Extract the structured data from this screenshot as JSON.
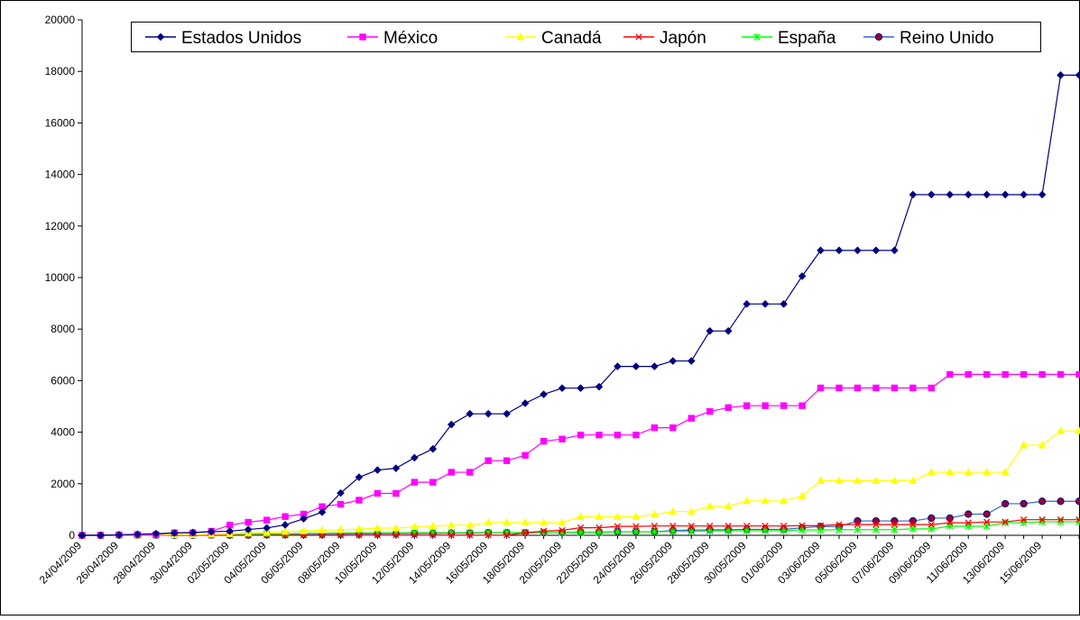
{
  "chart_data": {
    "type": "line",
    "title": "",
    "xlabel": "",
    "ylabel": "",
    "ylim": [
      0,
      20000
    ],
    "y_ticks": [
      "0",
      "2000",
      "4000",
      "6000",
      "8000",
      "10000",
      "12000",
      "14000",
      "16000",
      "18000",
      "20000"
    ],
    "grid": false,
    "legend_position": "top",
    "x": [
      "24/04/2009",
      "25/04/2009",
      "26/04/2009",
      "27/04/2009",
      "28/04/2009",
      "29/04/2009",
      "30/04/2009",
      "01/05/2009",
      "02/05/2009",
      "03/05/2009",
      "04/05/2009",
      "05/05/2009",
      "06/05/2009",
      "07/05/2009",
      "08/05/2009",
      "09/05/2009",
      "10/05/2009",
      "11/05/2009",
      "12/05/2009",
      "13/05/2009",
      "14/05/2009",
      "15/05/2009",
      "16/05/2009",
      "17/05/2009",
      "18/05/2009",
      "19/05/2009",
      "20/05/2009",
      "21/05/2009",
      "22/05/2009",
      "23/05/2009",
      "24/05/2009",
      "25/05/2009",
      "26/05/2009",
      "27/05/2009",
      "28/05/2009",
      "29/05/2009",
      "30/05/2009",
      "31/05/2009",
      "01/06/2009",
      "02/06/2009",
      "03/06/2009",
      "04/06/2009",
      "05/06/2009",
      "06/06/2009",
      "07/06/2009",
      "08/06/2009",
      "09/06/2009",
      "10/06/2009",
      "11/06/2009",
      "12/06/2009",
      "13/06/2009",
      "14/06/2009",
      "15/06/2009",
      "16/06/2009",
      "17/06/2009"
    ],
    "x_tick_labels": [
      "24/04/2009",
      "26/04/2009",
      "28/04/2009",
      "30/04/2009",
      "02/05/2009",
      "04/05/2009",
      "06/05/2009",
      "08/05/2009",
      "10/05/2009",
      "12/05/2009",
      "14/05/2009",
      "16/05/2009",
      "18/05/2009",
      "20/05/2009",
      "22/05/2009",
      "24/05/2009",
      "26/05/2009",
      "28/05/2009",
      "30/05/2009",
      "01/06/2009",
      "03/06/2009",
      "05/06/2009",
      "07/06/2009",
      "09/06/2009",
      "11/06/2009",
      "13/06/2009",
      "15/06/2009"
    ],
    "series": [
      {
        "name": "Estados Unidos",
        "color": "#000080",
        "marker": "diamond",
        "values": [
          0,
          0,
          20,
          40,
          64,
          91,
          109,
          141,
          160,
          226,
          286,
          403,
          642,
          896,
          1639,
          2254,
          2532,
          2600,
          3009,
          3352,
          4298,
          4714,
          4714,
          4714,
          5123,
          5469,
          5710,
          5710,
          5764,
          6552,
          6552,
          6552,
          6764,
          6764,
          7927,
          7927,
          8975,
          8975,
          8975,
          10053,
          11054,
          11054,
          11054,
          11054,
          11054,
          13217,
          13217,
          13217,
          13217,
          13217,
          13217,
          13217,
          13217,
          17855,
          17855
        ]
      },
      {
        "name": "México",
        "color": "#ff00ff",
        "marker": "square",
        "values": [
          0,
          0,
          18,
          26,
          26,
          97,
          97,
          156,
          397,
          506,
          590,
          727,
          822,
          1112,
          1204,
          1364,
          1626,
          1626,
          2059,
          2059,
          2446,
          2446,
          2895,
          2895,
          3103,
          3648,
          3734,
          3892,
          3892,
          3892,
          3892,
          4174,
          4174,
          4541,
          4806,
          4953,
          5029,
          5029,
          5029,
          5029,
          5717,
          5717,
          5717,
          5717,
          5717,
          5717,
          5717,
          6241,
          6241,
          6241,
          6241,
          6241,
          6241,
          6241,
          6241
        ]
      },
      {
        "name": "Canadá",
        "color": "#ffff00",
        "marker": "triangle",
        "values": [
          0,
          0,
          6,
          6,
          13,
          19,
          19,
          34,
          51,
          85,
          101,
          140,
          165,
          201,
          214,
          242,
          280,
          280,
          330,
          358,
          389,
          389,
          496,
          496,
          496,
          496,
          496,
          719,
          719,
          719,
          719,
          805,
          921,
          921,
          1118,
          1118,
          1336,
          1336,
          1336,
          1530,
          2115,
          2115,
          2115,
          2115,
          2115,
          2115,
          2446,
          2446,
          2446,
          2446,
          2446,
          3498,
          3498,
          4049,
          4049
        ]
      },
      {
        "name": "Japón",
        "color": "#ff0000",
        "marker": "x",
        "values": [
          0,
          0,
          0,
          0,
          0,
          0,
          0,
          0,
          0,
          0,
          0,
          0,
          0,
          0,
          0,
          4,
          4,
          4,
          4,
          4,
          7,
          7,
          7,
          7,
          96,
          163,
          193,
          294,
          294,
          345,
          345,
          360,
          360,
          360,
          360,
          360,
          360,
          360,
          360,
          376,
          376,
          416,
          416,
          416,
          416,
          416,
          416,
          485,
          485,
          518,
          518,
          605,
          605,
          605,
          605
        ]
      },
      {
        "name": "España",
        "color": "#00ff00",
        "marker": "star",
        "values": [
          0,
          0,
          2,
          2,
          10,
          13,
          13,
          13,
          40,
          40,
          54,
          57,
          73,
          81,
          88,
          93,
          95,
          98,
          100,
          103,
          103,
          103,
          107,
          107,
          107,
          107,
          107,
          113,
          113,
          133,
          133,
          133,
          151,
          151,
          171,
          171,
          182,
          182,
          182,
          205,
          205,
          218,
          218,
          218,
          218,
          250,
          250,
          350,
          350,
          350,
          488,
          488,
          522,
          522,
          522
        ]
      },
      {
        "name": "Reino Unido",
        "color": "#3366cc",
        "marker": "circle",
        "values": [
          0,
          0,
          0,
          0,
          5,
          5,
          5,
          15,
          15,
          15,
          27,
          32,
          34,
          39,
          47,
          55,
          55,
          65,
          68,
          71,
          82,
          82,
          101,
          101,
          101,
          102,
          112,
          122,
          122,
          137,
          137,
          137,
          185,
          203,
          216,
          216,
          229,
          229,
          229,
          293,
          339,
          339,
          557,
          557,
          557,
          557,
          666,
          666,
          822,
          822,
          1226,
          1226,
          1320,
          1320,
          1320
        ]
      }
    ]
  }
}
